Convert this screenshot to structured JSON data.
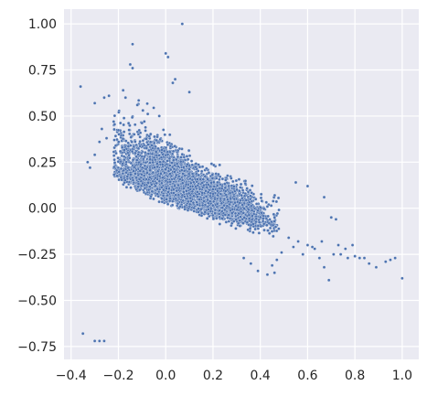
{
  "chart_data": {
    "type": "scatter",
    "title": "",
    "xlabel": "",
    "ylabel": "",
    "xlim": [
      -0.43,
      1.07
    ],
    "ylim": [
      -0.82,
      1.08
    ],
    "grid": true,
    "style": "seaborn-darkgrid",
    "colors": {
      "background": "#eaeaf2",
      "grid": "#ffffff",
      "marker": "#4c72b0",
      "marker_edge": "#ffffff",
      "text": "#262626"
    },
    "x_ticks": [
      -0.4,
      -0.2,
      0.0,
      0.2,
      0.4,
      0.6,
      0.8,
      1.0
    ],
    "x_tick_labels": [
      "−0.4",
      "−0.2",
      "0.0",
      "0.2",
      "0.4",
      "0.6",
      "0.8",
      "1.0"
    ],
    "y_ticks": [
      -0.75,
      -0.5,
      -0.25,
      0.0,
      0.25,
      0.5,
      0.75,
      1.0
    ],
    "y_tick_labels": [
      "−0.75",
      "−0.50",
      "−0.25",
      "0.00",
      "0.25",
      "0.50",
      "0.75",
      "1.00"
    ],
    "series": [
      {
        "points": [
          [
            0.07,
            1.0
          ],
          [
            -0.14,
            0.89
          ],
          [
            0.0,
            0.84
          ],
          [
            0.01,
            0.82
          ],
          [
            -0.15,
            0.78
          ],
          [
            -0.14,
            0.76
          ],
          [
            -0.36,
            0.66
          ],
          [
            -0.26,
            0.6
          ],
          [
            -0.3,
            0.57
          ],
          [
            -0.24,
            0.61
          ],
          [
            0.03,
            0.68
          ],
          [
            0.04,
            0.7
          ],
          [
            0.1,
            0.63
          ],
          [
            -0.18,
            0.64
          ],
          [
            -0.17,
            0.6
          ],
          [
            -0.12,
            0.56
          ],
          [
            -0.22,
            0.47
          ],
          [
            -0.27,
            0.43
          ],
          [
            -0.25,
            0.38
          ],
          [
            -0.28,
            0.36
          ],
          [
            -0.33,
            0.25
          ],
          [
            -0.32,
            0.22
          ],
          [
            -0.3,
            0.29
          ],
          [
            -0.35,
            -0.68
          ],
          [
            -0.3,
            -0.72
          ],
          [
            -0.28,
            -0.72
          ],
          [
            -0.26,
            -0.72
          ],
          [
            0.55,
            0.14
          ],
          [
            0.6,
            0.12
          ],
          [
            0.67,
            0.06
          ],
          [
            0.7,
            -0.05
          ],
          [
            0.72,
            -0.06
          ],
          [
            0.63,
            -0.22
          ],
          [
            0.65,
            -0.27
          ],
          [
            0.67,
            -0.32
          ],
          [
            0.69,
            -0.39
          ],
          [
            0.58,
            -0.25
          ],
          [
            0.6,
            -0.2
          ],
          [
            0.62,
            -0.21
          ],
          [
            0.56,
            -0.18
          ],
          [
            0.52,
            -0.16
          ],
          [
            0.54,
            -0.21
          ],
          [
            0.49,
            -0.24
          ],
          [
            0.47,
            -0.28
          ],
          [
            0.45,
            -0.31
          ],
          [
            0.43,
            -0.36
          ],
          [
            0.46,
            -0.35
          ],
          [
            0.39,
            -0.34
          ],
          [
            0.36,
            -0.3
          ],
          [
            0.33,
            -0.27
          ],
          [
            0.74,
            -0.25
          ],
          [
            0.77,
            -0.27
          ],
          [
            0.76,
            -0.22
          ],
          [
            0.8,
            -0.26
          ],
          [
            0.82,
            -0.27
          ],
          [
            0.86,
            -0.3
          ],
          [
            0.89,
            -0.32
          ],
          [
            0.93,
            -0.29
          ],
          [
            0.95,
            -0.28
          ],
          [
            0.97,
            -0.27
          ],
          [
            1.0,
            -0.38
          ],
          [
            0.84,
            -0.27
          ],
          [
            0.79,
            -0.2
          ],
          [
            0.73,
            -0.2
          ],
          [
            0.71,
            -0.25
          ],
          [
            0.66,
            -0.18
          ]
        ]
      }
    ],
    "dense_cloud": {
      "count": 9000,
      "x_range": [
        -0.22,
        0.48
      ],
      "trend": {
        "slope": -0.45,
        "intercept": 0.13
      },
      "spread": 0.06
    }
  }
}
